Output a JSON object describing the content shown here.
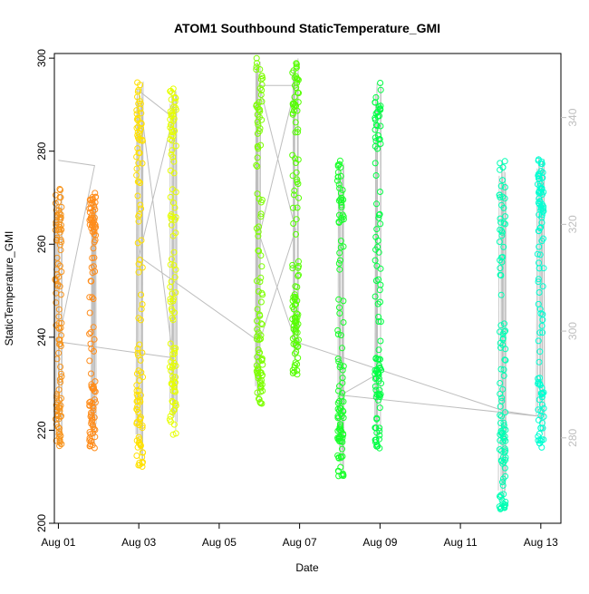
{
  "chart_data": {
    "type": "scatter",
    "title": "ATOM1 Southbound StaticTemperature_GMI",
    "xlabel": "Date",
    "ylabel": "StaticTemperature_GMI",
    "x_unit": "day of August",
    "xlim": [
      0.9,
      13.5
    ],
    "ylim": [
      200,
      301
    ],
    "y2lim": [
      264,
      352
    ],
    "x_ticks": [
      1,
      3,
      5,
      7,
      9,
      11,
      13
    ],
    "x_tick_labels": [
      "Aug 01",
      "Aug 03",
      "Aug 05",
      "Aug 07",
      "Aug 09",
      "Aug 11",
      "Aug 13"
    ],
    "y_ticks": [
      200,
      220,
      240,
      260,
      280,
      300
    ],
    "y_tick_labels": [
      "200",
      "220",
      "240",
      "260",
      "280",
      "300"
    ],
    "y2_ticks": [
      280,
      300,
      320,
      340
    ],
    "y2_tick_labels": [
      "280",
      "300",
      "320",
      "340"
    ],
    "legend": "none",
    "grid": false,
    "colors": {
      "profile_line": "#bebebe",
      "y2_axis": "#bebebe",
      "axis": "#000000",
      "point_gradient": [
        "#ff8c1a",
        "#ffdd00",
        "#e8ff00",
        "#b4ff00",
        "#44ff00",
        "#00ff44",
        "#00ff9a",
        "#00ffd2"
      ]
    },
    "clusters": [
      {
        "day": 1.0,
        "y_min": 216,
        "y_max": 272,
        "color": "#f7941d"
      },
      {
        "day": 1.85,
        "y_min": 216,
        "y_max": 271,
        "color": "#ff8c1a"
      },
      {
        "day": 3.02,
        "y_min": 212,
        "y_max": 295,
        "color": "#ffe100"
      },
      {
        "day": 3.85,
        "y_min": 219,
        "y_max": 294,
        "color": "#e6ff00"
      },
      {
        "day": 6.0,
        "y_min": 225,
        "y_max": 300,
        "color": "#7dff00"
      },
      {
        "day": 6.9,
        "y_min": 232,
        "y_max": 300,
        "color": "#55ff00"
      },
      {
        "day": 8.02,
        "y_min": 210,
        "y_max": 278,
        "color": "#18ff2a"
      },
      {
        "day": 8.95,
        "y_min": 216,
        "y_max": 295,
        "color": "#00ff44"
      },
      {
        "day": 12.05,
        "y_min": 203,
        "y_max": 278,
        "color": "#00ffb4"
      },
      {
        "day": 13.0,
        "y_min": 216,
        "y_max": 279,
        "color": "#00ffd2"
      }
    ],
    "profile_line_y2": [
      {
        "x": 1.0,
        "y": 332
      },
      {
        "x": 1.9,
        "y": 331
      },
      {
        "x": 1.0,
        "y": 298
      },
      {
        "x": 3.85,
        "y": 295
      },
      {
        "x": 3.0,
        "y": 345
      },
      {
        "x": 3.85,
        "y": 340
      },
      {
        "x": 3.0,
        "y": 314
      },
      {
        "x": 6.0,
        "y": 298
      },
      {
        "x": 6.9,
        "y": 319
      },
      {
        "x": 6.0,
        "y": 346
      },
      {
        "x": 6.9,
        "y": 346
      },
      {
        "x": 6.0,
        "y": 318
      },
      {
        "x": 6.9,
        "y": 298
      },
      {
        "x": 12.1,
        "y": 285
      },
      {
        "x": 13.0,
        "y": 284
      },
      {
        "x": 8.02,
        "y": 288
      },
      {
        "x": 8.95,
        "y": 292
      }
    ]
  }
}
